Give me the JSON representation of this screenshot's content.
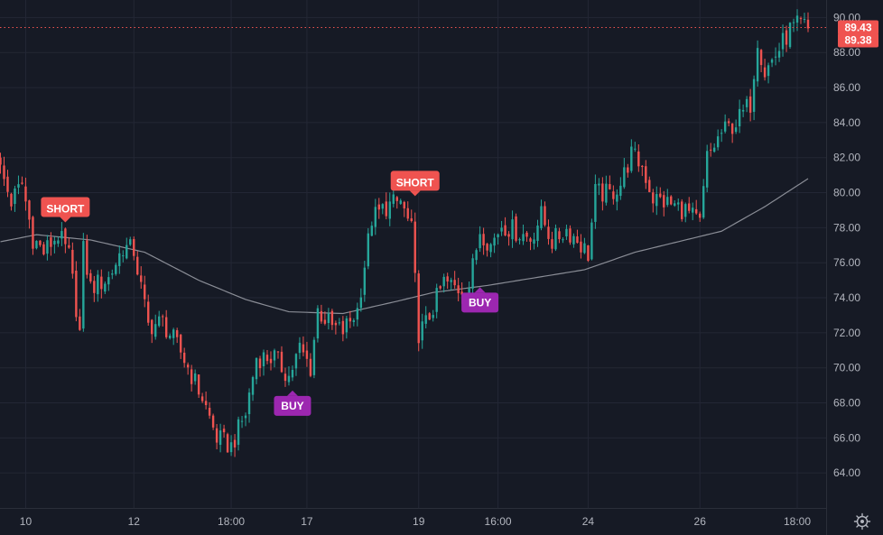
{
  "chart_data": {
    "type": "candlestick",
    "title": "",
    "xlabel": "",
    "ylabel": "",
    "ylim": [
      62.0,
      91.0
    ],
    "grid": true,
    "y_ticks": [
      {
        "value": 64.0,
        "label": "64.00"
      },
      {
        "value": 66.0,
        "label": "66.00"
      },
      {
        "value": 68.0,
        "label": "68.00"
      },
      {
        "value": 70.0,
        "label": "70.00"
      },
      {
        "value": 72.0,
        "label": "72.00"
      },
      {
        "value": 74.0,
        "label": "74.00"
      },
      {
        "value": 76.0,
        "label": "76.00"
      },
      {
        "value": 78.0,
        "label": "78.00"
      },
      {
        "value": 80.0,
        "label": "80.00"
      },
      {
        "value": 82.0,
        "label": "82.00"
      },
      {
        "value": 84.0,
        "label": "84.00"
      },
      {
        "value": 86.0,
        "label": "86.00"
      },
      {
        "value": 88.0,
        "label": "88.00"
      },
      {
        "value": 90.0,
        "label": "90.00"
      }
    ],
    "x_ticks": [
      {
        "index": 7,
        "label": "10"
      },
      {
        "index": 37,
        "label": "12"
      },
      {
        "index": 64,
        "label": "18:00"
      },
      {
        "index": 85,
        "label": "17"
      },
      {
        "index": 116,
        "label": "19"
      },
      {
        "index": 138,
        "label": "16:00"
      },
      {
        "index": 163,
        "label": "24"
      },
      {
        "index": 194,
        "label": "26"
      },
      {
        "index": 221,
        "label": "18:00"
      }
    ],
    "bar_count": 225,
    "key_closes": [
      [
        0,
        81.3
      ],
      [
        3,
        79.5
      ],
      [
        6,
        80.5
      ],
      [
        9,
        77.4
      ],
      [
        12,
        76.6
      ],
      [
        16,
        77.6
      ],
      [
        19,
        76.4
      ],
      [
        22,
        72.0
      ],
      [
        23,
        76.7
      ],
      [
        25,
        74.6
      ],
      [
        30,
        75.1
      ],
      [
        34,
        76.9
      ],
      [
        37,
        76.7
      ],
      [
        41,
        72.4
      ],
      [
        45,
        72.6
      ],
      [
        50,
        70.9
      ],
      [
        56,
        68.3
      ],
      [
        60,
        66.0
      ],
      [
        64,
        65.5
      ],
      [
        68,
        67.4
      ],
      [
        71,
        70.6
      ],
      [
        76,
        70.6
      ],
      [
        80,
        69.5
      ],
      [
        83,
        71.1
      ],
      [
        86,
        70.0
      ],
      [
        88,
        73.3
      ],
      [
        92,
        72.3
      ],
      [
        95,
        72.1
      ],
      [
        99,
        73.3
      ],
      [
        103,
        78.5
      ],
      [
        107,
        79.2
      ],
      [
        111,
        79.5
      ],
      [
        114,
        77.8
      ],
      [
        116,
        72.0
      ],
      [
        118,
        72.5
      ],
      [
        123,
        74.9
      ],
      [
        127,
        74.5
      ],
      [
        130,
        74.7
      ],
      [
        133,
        77.9
      ],
      [
        136,
        77.0
      ],
      [
        139,
        78.2
      ],
      [
        144,
        77.7
      ],
      [
        147,
        77.4
      ],
      [
        150,
        78.7
      ],
      [
        153,
        77.2
      ],
      [
        157,
        77.9
      ],
      [
        160,
        77.3
      ],
      [
        163,
        76.5
      ],
      [
        165,
        80.0
      ],
      [
        169,
        79.9
      ],
      [
        172,
        80.5
      ],
      [
        175,
        82.2
      ],
      [
        178,
        81.5
      ],
      [
        181,
        79.7
      ],
      [
        185,
        79.4
      ],
      [
        190,
        79.0
      ],
      [
        194,
        78.2
      ],
      [
        196,
        82.0
      ],
      [
        200,
        83.4
      ],
      [
        204,
        84.0
      ],
      [
        208,
        85.1
      ],
      [
        210,
        88.8
      ],
      [
        212,
        86.9
      ],
      [
        216,
        88.2
      ],
      [
        219,
        89.3
      ],
      [
        222,
        89.6
      ],
      [
        224,
        89.38
      ]
    ],
    "moving_average": {
      "key_points": [
        [
          0,
          77.2
        ],
        [
          10,
          77.6
        ],
        [
          25,
          77.3
        ],
        [
          40,
          76.6
        ],
        [
          55,
          75.0
        ],
        [
          68,
          73.9
        ],
        [
          80,
          73.2
        ],
        [
          95,
          73.1
        ],
        [
          110,
          73.8
        ],
        [
          120,
          74.3
        ],
        [
          135,
          74.7
        ],
        [
          150,
          75.2
        ],
        [
          162,
          75.6
        ],
        [
          176,
          76.6
        ],
        [
          190,
          77.3
        ],
        [
          200,
          77.8
        ],
        [
          212,
          79.2
        ],
        [
          224,
          80.8
        ]
      ]
    },
    "signals": [
      {
        "index": 18,
        "type": "SHORT",
        "label": "SHORT",
        "price": 78.3
      },
      {
        "index": 115,
        "type": "SHORT",
        "label": "SHORT",
        "price": 79.8
      },
      {
        "index": 81,
        "type": "BUY",
        "label": "BUY",
        "price": 68.7
      },
      {
        "index": 133,
        "type": "BUY",
        "label": "BUY",
        "price": 74.6
      }
    ],
    "price_labels": [
      {
        "value": 89.43,
        "label": "89.43"
      },
      {
        "value": 89.38,
        "label": "89.38"
      }
    ],
    "colors": {
      "background": "#161a25",
      "grid": "#232735",
      "up": "#26a69a",
      "down": "#ef5350",
      "moving_average": "#8a8d96",
      "short": "#ef5350",
      "buy": "#9c27b0",
      "axis_text": "#b2b5be",
      "price_line": "#ef5350"
    },
    "settings_icon": "gear-icon"
  }
}
